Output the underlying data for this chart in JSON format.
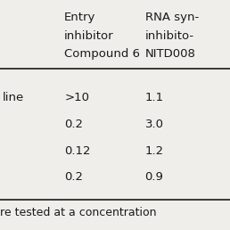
{
  "header_row1": [
    "",
    "Entry",
    "RNA syn-"
  ],
  "header_row2": [
    "",
    "inhibitor",
    "inhibito-"
  ],
  "header_row3": [
    "",
    "Compound 6",
    "NITD008"
  ],
  "col1_label": "line",
  "data_rows": [
    [
      ">10",
      "1.1"
    ],
    [
      "0.2",
      "3.0"
    ],
    [
      "0.12",
      "1.2"
    ],
    [
      "0.2",
      "0.9"
    ]
  ],
  "footer": "re tested at a concentration",
  "bg_color": "#f0eeeb",
  "text_color": "#1a1a1a",
  "font_size": 9.5,
  "header_font_size": 9.5
}
